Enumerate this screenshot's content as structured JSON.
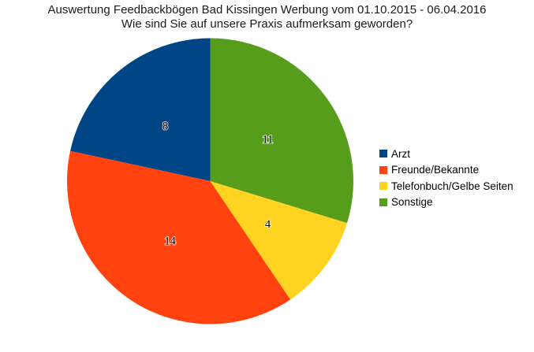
{
  "chart_data": {
    "type": "pie",
    "title": "Auswertung Feedbackbögen Bad Kissingen Werbung vom 01.10.2015 - 06.04.2016",
    "subtitle": "Wie sind Sie auf unsere Praxis aufmerksam geworden?",
    "categories": [
      "Arzt",
      "Freunde/Bekannte",
      "Telefonbuch/Gelbe Seiten",
      "Sonstige"
    ],
    "values": [
      8,
      14,
      4,
      11
    ],
    "total": 37,
    "colors": [
      "#004586",
      "#FF420E",
      "#FFD320",
      "#579D1C"
    ],
    "data_labels": [
      "8",
      "14",
      "4",
      "11"
    ],
    "label_color": "#000000",
    "background": "#FFFFFF",
    "legend_position": "right",
    "start_angle": "12-oclock",
    "direction": "counterclockwise",
    "grid": "off"
  }
}
